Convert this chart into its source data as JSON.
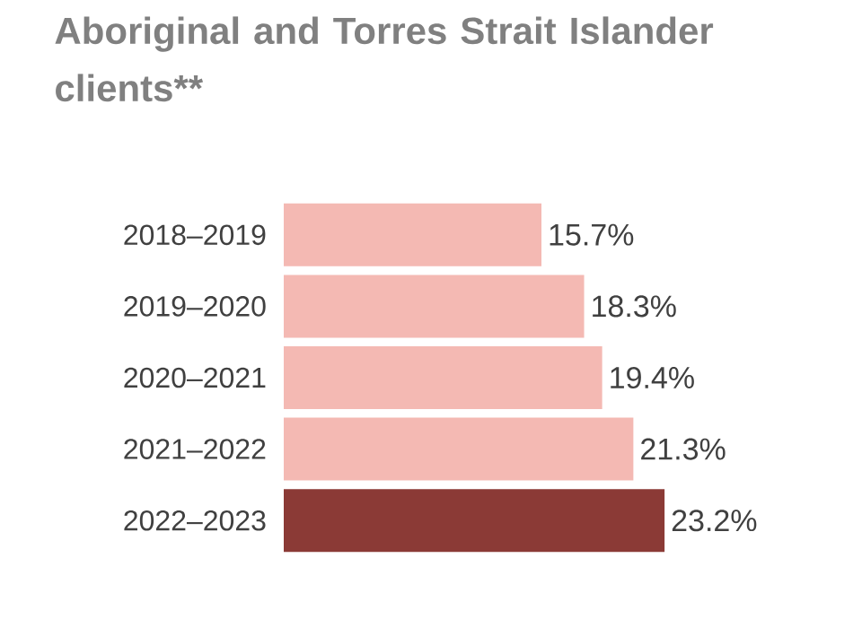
{
  "chart_data": {
    "type": "bar",
    "orientation": "horizontal",
    "title": "Aboriginal and Torres Strait Islander clients**",
    "categories": [
      "2018–2019",
      "2019–2020",
      "2020–2021",
      "2021–2022",
      "2022–2023"
    ],
    "values": [
      15.7,
      18.3,
      19.4,
      21.3,
      23.2
    ],
    "value_labels": [
      "15.7%",
      "18.3%",
      "19.4%",
      "21.3%",
      "23.2%"
    ],
    "colors": [
      "#f4b9b3",
      "#f4b9b3",
      "#f4b9b3",
      "#f4b9b3",
      "#8b3a36"
    ]
  }
}
